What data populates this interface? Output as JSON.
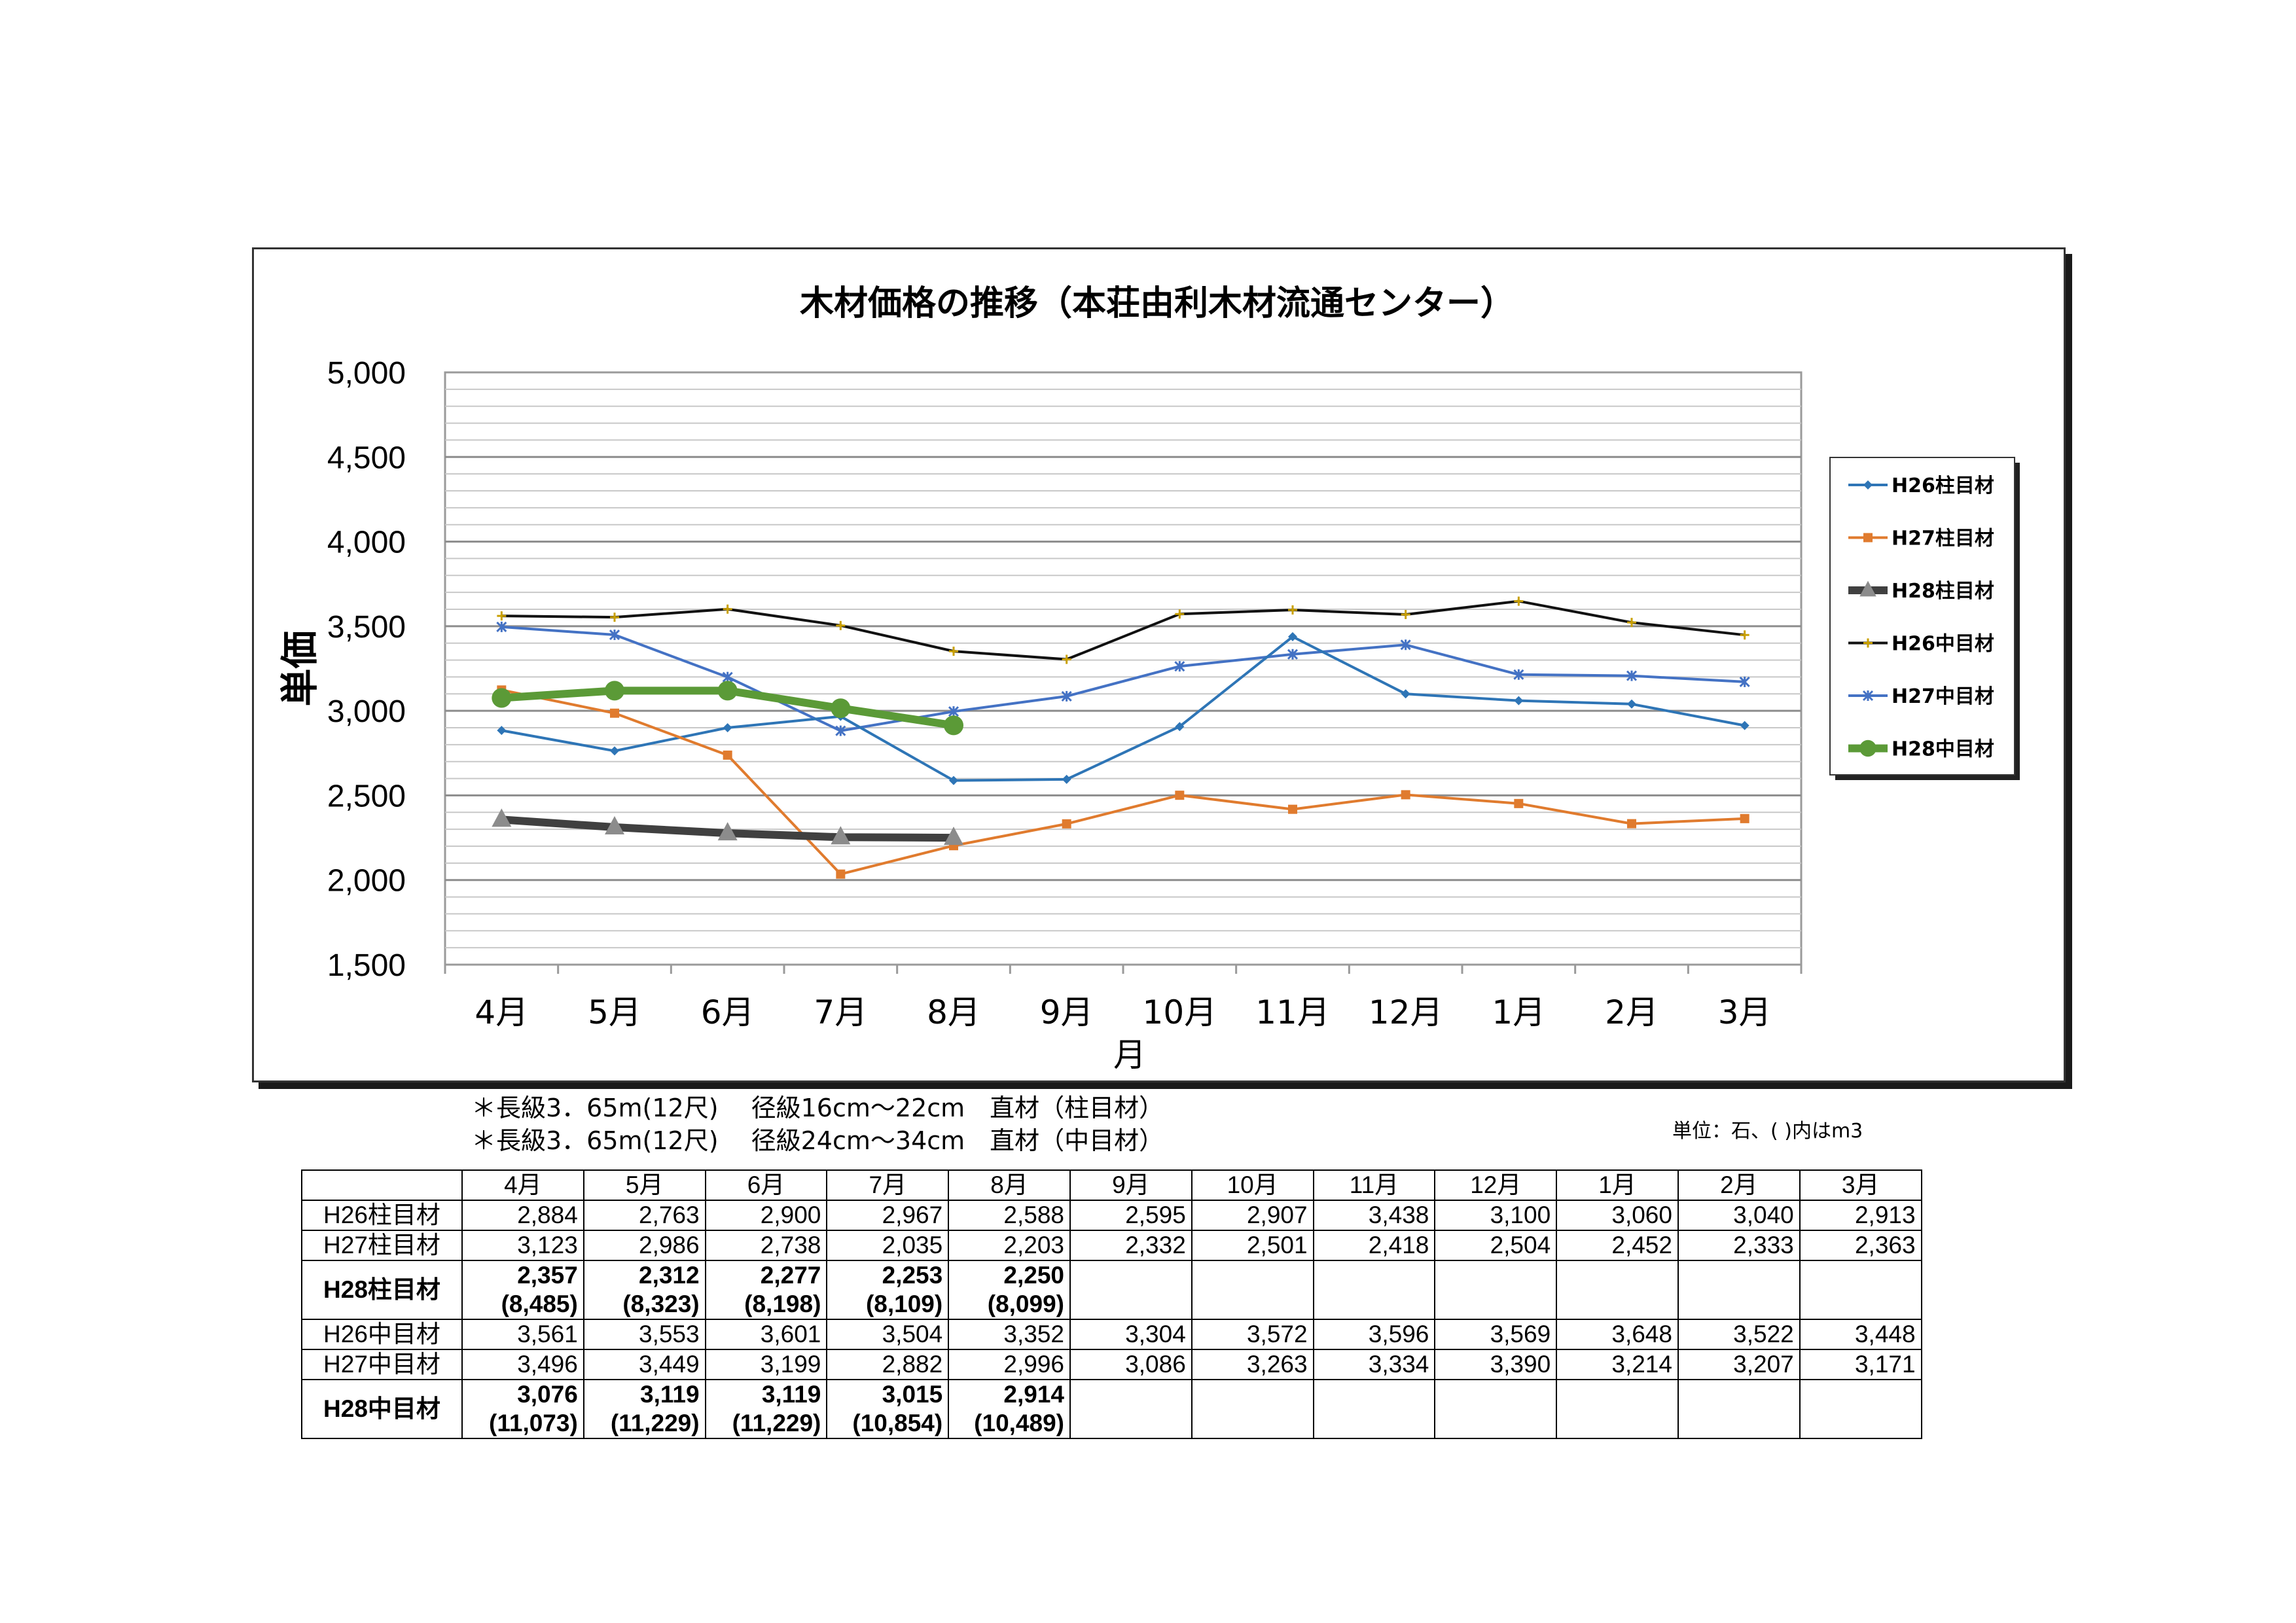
{
  "chart_data": {
    "type": "line",
    "title": "木材価格の推移（本荘由利木材流通センター）",
    "xlabel": "月",
    "ylabel": "単価",
    "ylim": [
      1500,
      5000
    ],
    "yticks": [
      "1,500",
      "2,000",
      "2,500",
      "3,000",
      "3,500",
      "4,000",
      "4,500",
      "5,000"
    ],
    "categories": [
      "4月",
      "5月",
      "6月",
      "7月",
      "8月",
      "9月",
      "10月",
      "11月",
      "12月",
      "1月",
      "2月",
      "3月"
    ],
    "grid": true,
    "legend_position": "right",
    "series": [
      {
        "name": "H26柱目材",
        "color": "#2E75B6",
        "marker": "diamond",
        "width": 4,
        "values": [
          2884,
          2763,
          2900,
          2967,
          2588,
          2595,
          2907,
          3438,
          3100,
          3060,
          3040,
          2913
        ]
      },
      {
        "name": "H27柱目材",
        "color": "#E07B2E",
        "marker": "square",
        "width": 4,
        "values": [
          3123,
          2986,
          2738,
          2035,
          2203,
          2332,
          2501,
          2418,
          2504,
          2452,
          2333,
          2363
        ]
      },
      {
        "name": "H28柱目材",
        "color": "#404040",
        "marker": "triangle",
        "width": 12,
        "values": [
          2357,
          2312,
          2277,
          2253,
          2250,
          null,
          null,
          null,
          null,
          null,
          null,
          null
        ]
      },
      {
        "name": "H26中目材",
        "color": "#111111",
        "marker": "plus",
        "width": 4,
        "values": [
          3561,
          3553,
          3601,
          3504,
          3352,
          3304,
          3572,
          3596,
          3569,
          3648,
          3522,
          3448
        ]
      },
      {
        "name": "H27中目材",
        "color": "#4472C4",
        "marker": "star",
        "width": 4,
        "values": [
          3496,
          3449,
          3199,
          2882,
          2996,
          3086,
          3263,
          3334,
          3390,
          3214,
          3207,
          3171
        ]
      },
      {
        "name": "H28中目材",
        "color": "#5B9A37",
        "marker": "circle",
        "width": 12,
        "values": [
          3076,
          3119,
          3119,
          3015,
          2914,
          null,
          null,
          null,
          null,
          null,
          null,
          null
        ]
      }
    ]
  },
  "notes": [
    "＊長級3．65m(12尺)　 径級16cm～22cm　直材（柱目材）",
    "＊長級3．65m(12尺)　 径級24cm～34cm　直材（中目材）"
  ],
  "unit_note": "単位：石、( )内はm3",
  "table": {
    "months": [
      "4月",
      "5月",
      "6月",
      "7月",
      "8月",
      "9月",
      "10月",
      "11月",
      "12月",
      "1月",
      "2月",
      "3月"
    ],
    "rows": [
      {
        "label": "H26柱目材",
        "bold": false,
        "values": [
          "2,884",
          "2,763",
          "2,900",
          "2,967",
          "2,588",
          "2,595",
          "2,907",
          "3,438",
          "3,100",
          "3,060",
          "3,040",
          "2,913"
        ]
      },
      {
        "label": "H27柱目材",
        "bold": false,
        "values": [
          "3,123",
          "2,986",
          "2,738",
          "2,035",
          "2,203",
          "2,332",
          "2,501",
          "2,418",
          "2,504",
          "2,452",
          "2,333",
          "2,363"
        ]
      },
      {
        "label": "H28柱目材",
        "bold": true,
        "values": [
          "2,357",
          "2,312",
          "2,277",
          "2,253",
          "2,250",
          "",
          "",
          "",
          "",
          "",
          "",
          ""
        ],
        "sub": [
          "(8,485)",
          "(8,323)",
          "(8,198)",
          "(8,109)",
          "(8,099)",
          "",
          "",
          "",
          "",
          "",
          "",
          ""
        ]
      },
      {
        "label": "H26中目材",
        "bold": false,
        "values": [
          "3,561",
          "3,553",
          "3,601",
          "3,504",
          "3,352",
          "3,304",
          "3,572",
          "3,596",
          "3,569",
          "3,648",
          "3,522",
          "3,448"
        ]
      },
      {
        "label": "H27中目材",
        "bold": false,
        "values": [
          "3,496",
          "3,449",
          "3,199",
          "2,882",
          "2,996",
          "3,086",
          "3,263",
          "3,334",
          "3,390",
          "3,214",
          "3,207",
          "3,171"
        ]
      },
      {
        "label": "H28中目材",
        "bold": true,
        "values": [
          "3,076",
          "3,119",
          "3,119",
          "3,015",
          "2,914",
          "",
          "",
          "",
          "",
          "",
          "",
          ""
        ],
        "sub": [
          "(11,073)",
          "(11,229)",
          "(11,229)",
          "(10,854)",
          "(10,489)",
          "",
          "",
          "",
          "",
          "",
          "",
          ""
        ]
      }
    ]
  }
}
